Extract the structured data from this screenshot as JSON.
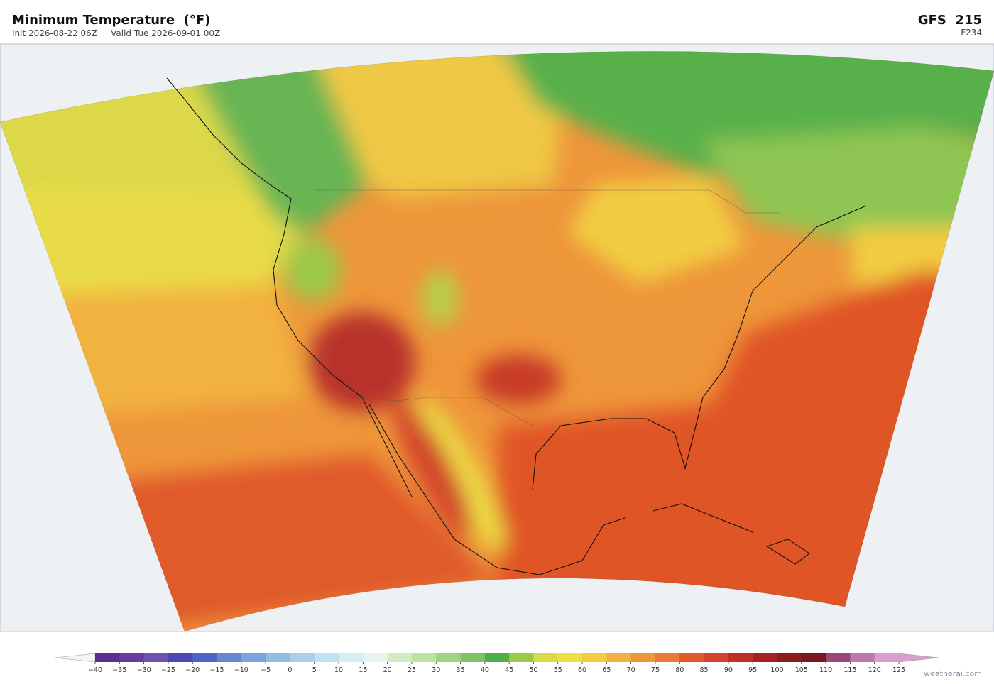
{
  "header": {
    "title": "Minimum Temperature  (°F)",
    "subtitle": "Init 2026-08-22 06Z  ·  Valid Tue 2026-09-01 00Z",
    "model": "GFS  215",
    "forecast_hour": "F234"
  },
  "colorbar": {
    "ticks": [
      {
        "value": -40,
        "label": "−40"
      },
      {
        "value": -35,
        "label": "−35"
      },
      {
        "value": -30,
        "label": "−30"
      },
      {
        "value": -25,
        "label": "−25"
      },
      {
        "value": -20,
        "label": "−20"
      },
      {
        "value": -15,
        "label": "−15"
      },
      {
        "value": -10,
        "label": "−10"
      },
      {
        "value": -5,
        "label": "−5"
      },
      0,
      5,
      10,
      15,
      20,
      25,
      30,
      35,
      40,
      45,
      50,
      55,
      60,
      65,
      70,
      75,
      80,
      85,
      90,
      95,
      100,
      105,
      110,
      115,
      120,
      125
    ],
    "colors": [
      "#5a2d8f",
      "#6a3b9e",
      "#7150b0",
      "#4a48b6",
      "#4f62c8",
      "#6686d2",
      "#7ea3da",
      "#90bde0",
      "#a9d0e8",
      "#c0e1ef",
      "#d6edf1",
      "#e6f4ea",
      "#d2ebc6",
      "#bce3a2",
      "#9fd582",
      "#7dc466",
      "#4fae4a",
      "#9cc94a",
      "#d9db47",
      "#ece046",
      "#f2cd43",
      "#f2b23f",
      "#ee963a",
      "#ea7a36",
      "#e05a2a",
      "#d3422a",
      "#bf3026",
      "#a52423",
      "#8c1b1f",
      "#7a1721",
      "#9a4877",
      "#bd78ae",
      "#d7a1cb"
    ],
    "under_color": "#f4f4f8",
    "over_color": "#d7a1cb"
  },
  "credit": "weatherai.com"
}
